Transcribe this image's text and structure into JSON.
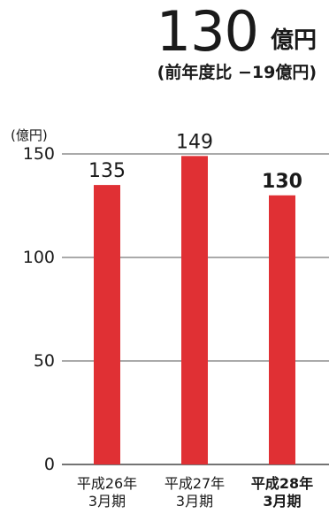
{
  "headline": {
    "value": "130",
    "unit": "億円",
    "change": "(前年度比 −19億円)"
  },
  "chart_data": {
    "type": "bar",
    "ylabel": "(億円)",
    "ylim": [
      0,
      150
    ],
    "yticks": [
      "0",
      "50",
      "100",
      "150"
    ],
    "categories": [
      [
        "平成26年",
        "3月期"
      ],
      [
        "平成27年",
        "3月期"
      ],
      [
        "平成28年",
        "3月期"
      ]
    ],
    "values": [
      135,
      149,
      130
    ],
    "value_labels": [
      "135",
      "149",
      "130"
    ],
    "highlight_index": 2,
    "grid": true,
    "colors": {
      "bar": "#e03034",
      "grid": "#555555",
      "text": "#1a1a1a"
    }
  }
}
